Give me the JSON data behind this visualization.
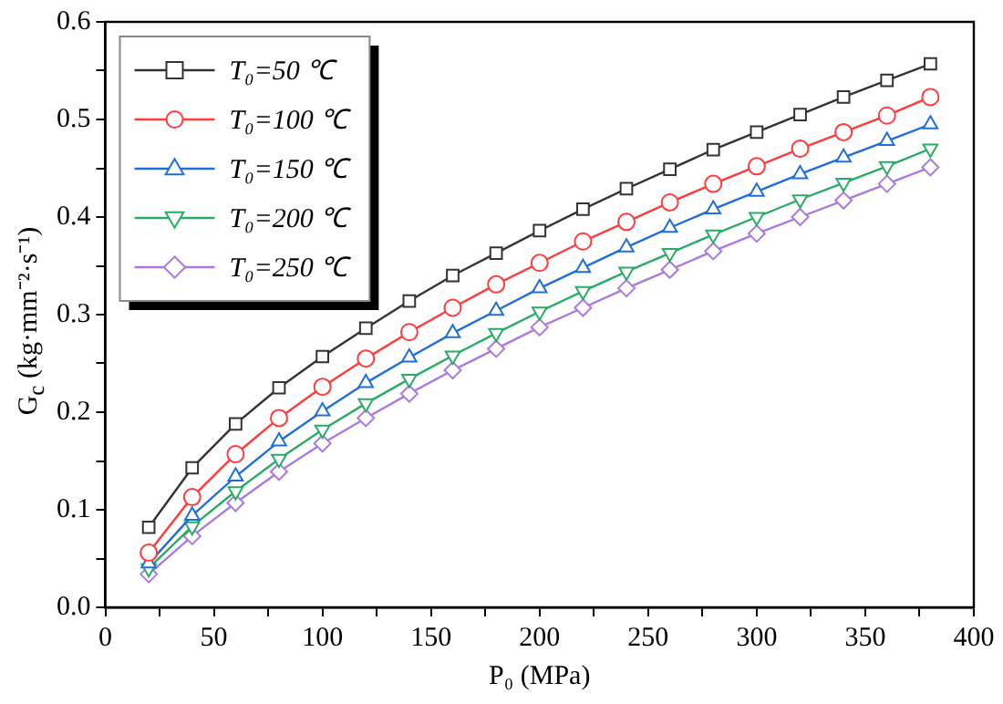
{
  "chart_data": {
    "type": "line",
    "xlabel": "P₀ (MPa)",
    "ylabel": "G$_{c}$ (kg·mm⁻²·s⁻¹)",
    "x": [
      20,
      40,
      60,
      80,
      100,
      120,
      140,
      160,
      180,
      200,
      220,
      240,
      260,
      280,
      300,
      320,
      340,
      360,
      380
    ],
    "series": [
      {
        "name": "T₀=50 ℃",
        "color": "#333333",
        "marker": "square",
        "values": [
          0.082,
          0.143,
          0.188,
          0.225,
          0.257,
          0.286,
          0.314,
          0.34,
          0.363,
          0.386,
          0.408,
          0.429,
          0.449,
          0.469,
          0.487,
          0.505,
          0.523,
          0.54,
          0.557
        ]
      },
      {
        "name": "T₀=100 ℃",
        "color": "#ff3b3b",
        "marker": "circle",
        "values": [
          0.056,
          0.113,
          0.157,
          0.194,
          0.226,
          0.255,
          0.282,
          0.307,
          0.331,
          0.353,
          0.375,
          0.395,
          0.415,
          0.434,
          0.452,
          0.47,
          0.487,
          0.504,
          0.523
        ]
      },
      {
        "name": "T₀=150 ℃",
        "color": "#1f6fd6",
        "marker": "triangle",
        "values": [
          0.045,
          0.094,
          0.134,
          0.17,
          0.201,
          0.23,
          0.256,
          0.281,
          0.304,
          0.327,
          0.348,
          0.369,
          0.389,
          0.408,
          0.426,
          0.444,
          0.461,
          0.478,
          0.495
        ]
      },
      {
        "name": "T₀=200 ℃",
        "color": "#2aab66",
        "marker": "triangle-down",
        "values": [
          0.04,
          0.083,
          0.119,
          0.152,
          0.182,
          0.209,
          0.234,
          0.258,
          0.281,
          0.303,
          0.324,
          0.344,
          0.363,
          0.382,
          0.4,
          0.418,
          0.435,
          0.452,
          0.47
        ]
      },
      {
        "name": "T₀=250 ℃",
        "color": "#a97be0",
        "marker": "diamond",
        "values": [
          0.034,
          0.073,
          0.107,
          0.139,
          0.168,
          0.194,
          0.219,
          0.243,
          0.265,
          0.287,
          0.307,
          0.327,
          0.346,
          0.365,
          0.383,
          0.4,
          0.417,
          0.434,
          0.451
        ]
      }
    ],
    "xlim": [
      0,
      400
    ],
    "xticks": [
      0,
      {
        "value": 25,
        "label": null
      },
      50,
      {
        "value": 75,
        "label": null
      },
      100,
      {
        "value": 125,
        "label": null
      },
      150,
      {
        "value": 175,
        "label": null
      },
      200,
      {
        "value": 225,
        "label": null
      },
      250,
      {
        "value": 275,
        "label": null
      },
      300,
      {
        "value": 325,
        "label": null
      },
      350,
      {
        "value": 375,
        "label": null
      },
      400
    ],
    "ylim": [
      0,
      0.6
    ],
    "yticks": [
      "0.0",
      {
        "value": 0.05,
        "label": null
      },
      0.1,
      {
        "value": 0.15,
        "label": null
      },
      0.2,
      {
        "value": 0.25,
        "label": null
      },
      0.3,
      {
        "value": 0.35,
        "label": null
      },
      0.4,
      {
        "value": 0.45,
        "label": null
      },
      0.5,
      {
        "value": 0.55,
        "label": null
      },
      0.6
    ],
    "grid": false,
    "legend": "top left",
    "line_style": "solid"
  }
}
